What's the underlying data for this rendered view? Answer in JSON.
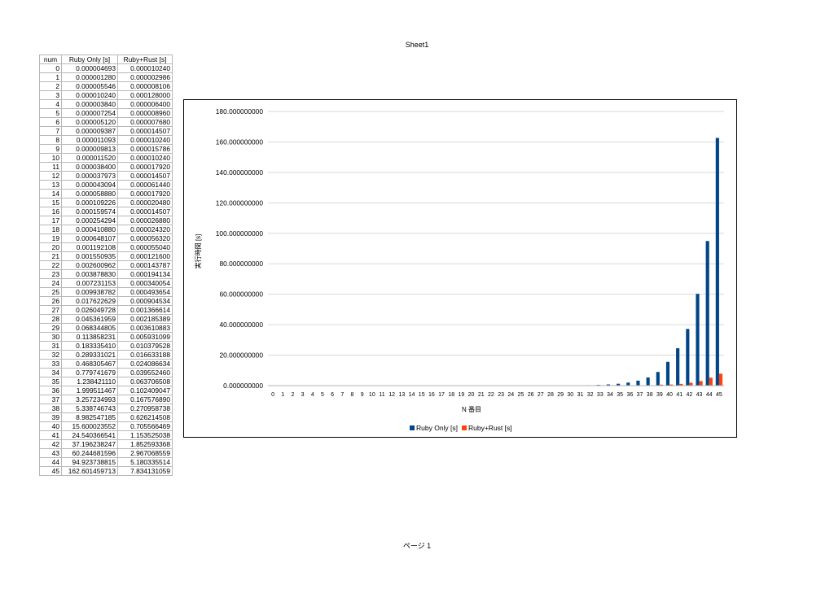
{
  "sheet": {
    "title": "Sheet1",
    "footer": "ページ 1"
  },
  "table": {
    "headers": [
      "num",
      "Ruby Only [s]",
      "Ruby+Rust [s]"
    ],
    "rows": [
      [
        "0",
        "0.000004693",
        "0.000010240"
      ],
      [
        "1",
        "0.000001280",
        "0.000002986"
      ],
      [
        "2",
        "0.000005546",
        "0.000008106"
      ],
      [
        "3",
        "0.000010240",
        "0.000128000"
      ],
      [
        "4",
        "0.000003840",
        "0.000006400"
      ],
      [
        "5",
        "0.000007254",
        "0.000008960"
      ],
      [
        "6",
        "0.000005120",
        "0.000007680"
      ],
      [
        "7",
        "0.000009387",
        "0.000014507"
      ],
      [
        "8",
        "0.000011093",
        "0.000010240"
      ],
      [
        "9",
        "0.000009813",
        "0.000015786"
      ],
      [
        "10",
        "0.000011520",
        "0.000010240"
      ],
      [
        "11",
        "0.000038400",
        "0.000017920"
      ],
      [
        "12",
        "0.000037973",
        "0.000014507"
      ],
      [
        "13",
        "0.000043094",
        "0.000061440"
      ],
      [
        "14",
        "0.000058880",
        "0.000017920"
      ],
      [
        "15",
        "0.000109226",
        "0.000020480"
      ],
      [
        "16",
        "0.000159574",
        "0.000014507"
      ],
      [
        "17",
        "0.000254294",
        "0.000026880"
      ],
      [
        "18",
        "0.000410880",
        "0.000024320"
      ],
      [
        "19",
        "0.000648107",
        "0.000056320"
      ],
      [
        "20",
        "0.001192108",
        "0.000055040"
      ],
      [
        "21",
        "0.001550935",
        "0.000121600"
      ],
      [
        "22",
        "0.002600962",
        "0.000143787"
      ],
      [
        "23",
        "0.003878830",
        "0.000194134"
      ],
      [
        "24",
        "0.007231153",
        "0.000340054"
      ],
      [
        "25",
        "0.009938782",
        "0.000493654"
      ],
      [
        "26",
        "0.017622629",
        "0.000904534"
      ],
      [
        "27",
        "0.026049728",
        "0.001366614"
      ],
      [
        "28",
        "0.045361959",
        "0.002185389"
      ],
      [
        "29",
        "0.068344805",
        "0.003610883"
      ],
      [
        "30",
        "0.113858231",
        "0.005931099"
      ],
      [
        "31",
        "0.183335410",
        "0.010379528"
      ],
      [
        "32",
        "0.289331021",
        "0.016633188"
      ],
      [
        "33",
        "0.468305467",
        "0.024086634"
      ],
      [
        "34",
        "0.779741679",
        "0.039552460"
      ],
      [
        "35",
        "1.238421110",
        "0.063706508"
      ],
      [
        "36",
        "1.999511467",
        "0.102409047"
      ],
      [
        "37",
        "3.257234993",
        "0.167576890"
      ],
      [
        "38",
        "5.338746743",
        "0.270958738"
      ],
      [
        "39",
        "8.982547185",
        "0.626214508"
      ],
      [
        "40",
        "15.600023552",
        "0.705566469"
      ],
      [
        "41",
        "24.540366541",
        "1.153525038"
      ],
      [
        "42",
        "37.196238247",
        "1.852593368"
      ],
      [
        "43",
        "60.244681596",
        "2.967068559"
      ],
      [
        "44",
        "94.923738815",
        "5.180335514"
      ],
      [
        "45",
        "162.601459713",
        "7.834131059"
      ]
    ]
  },
  "chart_data": {
    "type": "bar",
    "title": "",
    "xlabel": "N 番目",
    "ylabel": "実行時間 [s]",
    "ylim": [
      0,
      180
    ],
    "yticks": [
      0,
      20,
      40,
      60,
      80,
      100,
      120,
      140,
      160,
      180
    ],
    "ytick_labels": [
      "0.000000000",
      "20.000000000",
      "40.000000000",
      "60.000000000",
      "80.000000000",
      "100.000000000",
      "120.000000000",
      "140.000000000",
      "160.000000000",
      "180.000000000"
    ],
    "grid": true,
    "legend_position": "bottom",
    "categories": [
      "0",
      "1",
      "2",
      "3",
      "4",
      "5",
      "6",
      "7",
      "8",
      "9",
      "10",
      "11",
      "12",
      "13",
      "14",
      "15",
      "16",
      "17",
      "18",
      "19",
      "20",
      "21",
      "22",
      "23",
      "24",
      "25",
      "26",
      "27",
      "28",
      "29",
      "30",
      "31",
      "32",
      "33",
      "34",
      "35",
      "36",
      "37",
      "38",
      "39",
      "40",
      "41",
      "42",
      "43",
      "44",
      "45"
    ],
    "series": [
      {
        "name": "Ruby Only [s]",
        "color": "#004586",
        "values": [
          4.693e-06,
          1.28e-06,
          5.546e-06,
          1.024e-05,
          3.84e-06,
          7.254e-06,
          5.12e-06,
          9.387e-06,
          1.1093e-05,
          9.813e-06,
          1.152e-05,
          3.84e-05,
          3.7973e-05,
          4.3094e-05,
          5.888e-05,
          0.000109226,
          0.000159574,
          0.000254294,
          0.00041088,
          0.000648107,
          0.001192108,
          0.001550935,
          0.002600962,
          0.00387883,
          0.007231153,
          0.009938782,
          0.017622629,
          0.026049728,
          0.045361959,
          0.068344805,
          0.113858231,
          0.18333541,
          0.289331021,
          0.468305467,
          0.779741679,
          1.23842111,
          1.999511467,
          3.257234993,
          5.338746743,
          8.982547185,
          15.600023552,
          24.540366541,
          37.196238247,
          60.244681596,
          94.923738815,
          162.601459713
        ]
      },
      {
        "name": "Ruby+Rust [s]",
        "color": "#ff420e",
        "values": [
          1.024e-05,
          2.986e-06,
          8.106e-06,
          0.000128,
          6.4e-06,
          8.96e-06,
          7.68e-06,
          1.4507e-05,
          1.024e-05,
          1.5786e-05,
          1.024e-05,
          1.792e-05,
          1.4507e-05,
          6.144e-05,
          1.792e-05,
          2.048e-05,
          1.4507e-05,
          2.688e-05,
          2.432e-05,
          5.632e-05,
          5.504e-05,
          0.0001216,
          0.000143787,
          0.000194134,
          0.000340054,
          0.000493654,
          0.000904534,
          0.001366614,
          0.002185389,
          0.003610883,
          0.005931099,
          0.010379528,
          0.016633188,
          0.024086634,
          0.03955246,
          0.063706508,
          0.102409047,
          0.16757689,
          0.270958738,
          0.626214508,
          0.705566469,
          1.153525038,
          1.852593368,
          2.967068559,
          5.180335514,
          7.834131059
        ]
      }
    ]
  }
}
